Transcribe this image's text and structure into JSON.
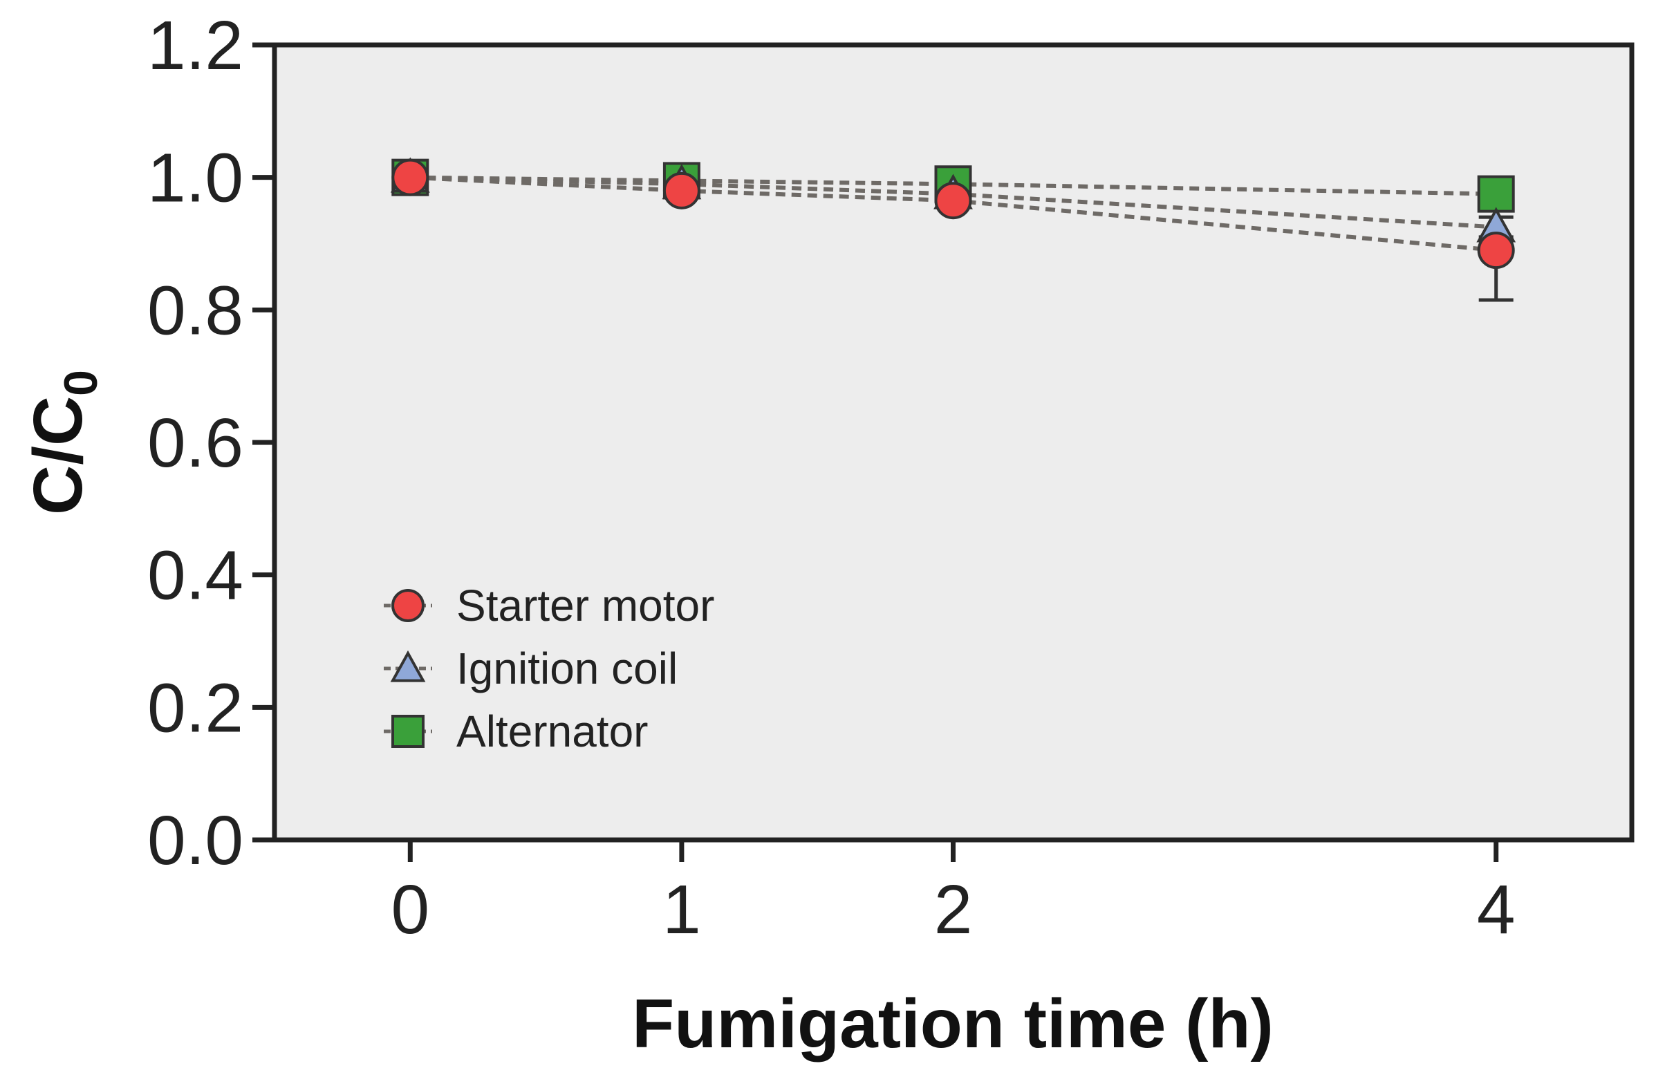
{
  "chart_data": {
    "type": "line",
    "xlabel": "Fumigation time (h)",
    "ylabel": {
      "main": "C/C",
      "subscript": "0"
    },
    "x": [
      0,
      1,
      2,
      4
    ],
    "xticks": [
      "0",
      "1",
      "2",
      "4"
    ],
    "yticks": [
      "0.0",
      "0.2",
      "0.4",
      "0.6",
      "0.8",
      "1.0",
      "1.2"
    ],
    "xlim": [
      -0.5,
      4.5
    ],
    "ylim": [
      0,
      1.2
    ],
    "grid": false,
    "legend_position": "bottom-left",
    "series": [
      {
        "name": "Starter motor",
        "marker": "circle",
        "color": "#ee4444",
        "values": [
          1.0,
          0.98,
          0.965,
          0.89
        ],
        "error": [
          0,
          0.008,
          0.01,
          0.075
        ]
      },
      {
        "name": "Ignition coil",
        "marker": "triangle",
        "color": "#8fa8d8",
        "values": [
          1.0,
          0.99,
          0.975,
          0.925
        ],
        "error": [
          0,
          0.005,
          0.008,
          0.015
        ]
      },
      {
        "name": "Alternator",
        "marker": "square",
        "color": "#3aa03a",
        "values": [
          1.0,
          0.995,
          0.99,
          0.975
        ],
        "error": [
          0,
          0.005,
          0.005,
          0.01
        ]
      }
    ]
  }
}
